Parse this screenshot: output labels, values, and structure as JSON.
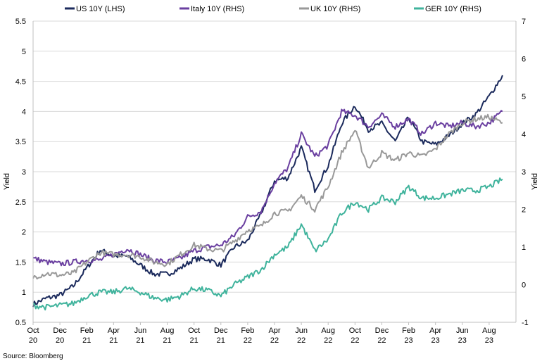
{
  "chart_data": {
    "type": "line",
    "title": "",
    "source": "Source: Bloomberg",
    "ylabel_left": "Yield",
    "ylabel_right": "Yield",
    "ylim_left": [
      0.5,
      5.5
    ],
    "ylim_right": [
      -1,
      7
    ],
    "yticks_left": [
      "0.5",
      "1",
      "1.5",
      "2",
      "2.5",
      "3",
      "3.5",
      "4",
      "4.5",
      "5",
      "5.5"
    ],
    "yticks_right": [
      "-1",
      "0",
      "1",
      "2",
      "3",
      "4",
      "5",
      "6",
      "7"
    ],
    "x_ticks": [
      {
        "month": "Oct",
        "year": "20"
      },
      {
        "month": "Dec",
        "year": "20"
      },
      {
        "month": "Feb",
        "year": "21"
      },
      {
        "month": "Apr",
        "year": "21"
      },
      {
        "month": "Jun",
        "year": "21"
      },
      {
        "month": "Aug",
        "year": "21"
      },
      {
        "month": "Oct",
        "year": "21"
      },
      {
        "month": "Dec",
        "year": "21"
      },
      {
        "month": "Feb",
        "year": "22"
      },
      {
        "month": "Apr",
        "year": "22"
      },
      {
        "month": "Jun",
        "year": "22"
      },
      {
        "month": "Aug",
        "year": "22"
      },
      {
        "month": "Oct",
        "year": "22"
      },
      {
        "month": "Dec",
        "year": "22"
      },
      {
        "month": "Feb",
        "year": "23"
      },
      {
        "month": "Apr",
        "year": "23"
      },
      {
        "month": "Jun",
        "year": "23"
      },
      {
        "month": "Aug",
        "year": "23"
      }
    ],
    "x": [
      "2020-10",
      "2020-11",
      "2020-12",
      "2021-01",
      "2021-02",
      "2021-03",
      "2021-04",
      "2021-05",
      "2021-06",
      "2021-07",
      "2021-08",
      "2021-09",
      "2021-10",
      "2021-11",
      "2021-12",
      "2022-01",
      "2022-02",
      "2022-03",
      "2022-04",
      "2022-05",
      "2022-06",
      "2022-07",
      "2022-08",
      "2022-09",
      "2022-10",
      "2022-11",
      "2022-12",
      "2023-01",
      "2023-02",
      "2023-03",
      "2023-04",
      "2023-05",
      "2023-06",
      "2023-07",
      "2023-08",
      "2023-09"
    ],
    "legend_position": "top",
    "grid": "horizontal",
    "series": [
      {
        "name": "US 10Y (LHS)",
        "axis": "left",
        "color": "#1b2a5c",
        "values": [
          0.8,
          0.9,
          0.95,
          1.1,
          1.4,
          1.7,
          1.6,
          1.6,
          1.45,
          1.3,
          1.3,
          1.4,
          1.55,
          1.55,
          1.45,
          1.75,
          1.85,
          2.3,
          2.85,
          2.9,
          3.4,
          2.7,
          3.1,
          3.8,
          4.1,
          3.7,
          3.8,
          3.5,
          3.9,
          3.5,
          3.45,
          3.6,
          3.8,
          3.95,
          4.25,
          4.6
        ]
      },
      {
        "name": "Italy 10Y (RHS)",
        "axis": "right",
        "color": "#6a3fa0",
        "values": [
          0.7,
          0.6,
          0.55,
          0.6,
          0.65,
          0.65,
          0.8,
          0.95,
          0.8,
          0.65,
          0.6,
          0.7,
          0.9,
          1.0,
          1.05,
          1.3,
          1.8,
          1.95,
          2.7,
          3.1,
          4.0,
          3.4,
          3.7,
          4.6,
          4.5,
          4.2,
          4.5,
          4.2,
          4.4,
          4.0,
          4.3,
          4.2,
          4.3,
          4.2,
          4.3,
          4.6
        ]
      },
      {
        "name": "UK 10Y (RHS)",
        "axis": "right",
        "color": "#999999",
        "values": [
          0.2,
          0.3,
          0.25,
          0.3,
          0.6,
          0.85,
          0.8,
          0.8,
          0.75,
          0.6,
          0.55,
          0.8,
          1.05,
          0.95,
          0.9,
          1.15,
          1.45,
          1.55,
          1.9,
          1.95,
          2.35,
          2.0,
          2.6,
          3.5,
          4.1,
          3.1,
          3.5,
          3.3,
          3.5,
          3.4,
          3.6,
          4.0,
          4.3,
          4.4,
          4.45,
          4.3
        ]
      },
      {
        "name": "GER 10Y (RHS)",
        "axis": "right",
        "color": "#3fb39c",
        "values": [
          -0.55,
          -0.6,
          -0.55,
          -0.5,
          -0.3,
          -0.2,
          -0.2,
          -0.1,
          -0.2,
          -0.35,
          -0.4,
          -0.3,
          -0.1,
          -0.15,
          -0.3,
          0.0,
          0.2,
          0.4,
          0.8,
          1.0,
          1.6,
          0.9,
          1.2,
          1.9,
          2.2,
          2.0,
          2.3,
          2.2,
          2.6,
          2.3,
          2.3,
          2.4,
          2.5,
          2.5,
          2.6,
          2.8
        ]
      }
    ]
  }
}
